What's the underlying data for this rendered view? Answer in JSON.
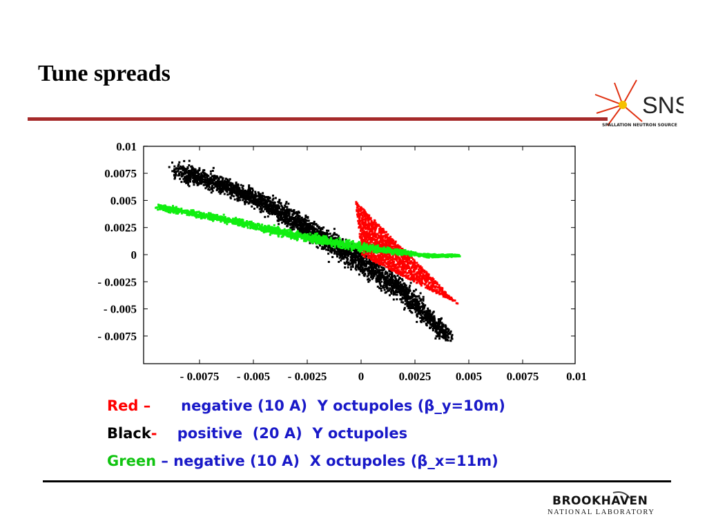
{
  "slide": {
    "title": "Tune spreads"
  },
  "logos": {
    "sns_text": "SNS",
    "sns_subtext": "SPALLATION NEUTRON SOURCE",
    "bnl_main": "BROOKHAVEN",
    "bnl_sub": "NATIONAL LABORATORY"
  },
  "legend": {
    "red": {
      "color_word": "Red",
      "sep": " –      ",
      "desc": "negative (10 A)  Y octupoles (β_y=10m)"
    },
    "black": {
      "color_word": "Black",
      "sep": "-    ",
      "desc": "positive  (20 A)  Y octupoles"
    },
    "green": {
      "color_word": "Green",
      "sep": " – ",
      "desc": "negative (10 A)  X octupoles (β_x=11m)"
    }
  },
  "colors": {
    "red": "#ff0000",
    "black": "#000000",
    "green": "#11ee11",
    "legend_text": "#1919c8",
    "title_rule": "#a52a2a"
  },
  "chart_data": {
    "type": "scatter",
    "xlim": [
      -0.01,
      0.01
    ],
    "ylim": [
      -0.01,
      0.01
    ],
    "x_ticks": [
      -0.0075,
      -0.005,
      -0.0025,
      0,
      0.0025,
      0.005,
      0.0075,
      0.01
    ],
    "x_tick_labels": [
      "- 0.0075",
      "- 0.005",
      "- 0.0025",
      "0",
      "0.0025",
      "0.005",
      "0.0075",
      "0.01"
    ],
    "y_ticks": [
      0.01,
      0.0075,
      0.005,
      0.0025,
      0,
      -0.0025,
      -0.005,
      -0.0075
    ],
    "y_tick_labels": [
      "0.01",
      "0.0075",
      "0.005",
      "0.0025",
      "0",
      "- 0.0025",
      "- 0.005",
      "- 0.0075"
    ],
    "series": [
      {
        "color": "#000000",
        "shape": "band",
        "spine": [
          [
            -0.0085,
            0.0078
          ],
          [
            -0.006,
            0.0062
          ],
          [
            -0.004,
            0.0043
          ],
          [
            -0.002,
            0.0018
          ],
          [
            0.0,
            -0.0005
          ],
          [
            0.002,
            -0.0035
          ],
          [
            0.004,
            -0.0075
          ]
        ],
        "halfwidth": [
          0.0012,
          0.001,
          0.0011,
          0.0013,
          0.0014,
          0.0012,
          0.0008
        ],
        "count": 3200
      },
      {
        "color": "#ff0000",
        "shape": "fan",
        "apex": [
          0.0,
          0.0
        ],
        "ray_a": [
          -0.0003,
          0.005
        ],
        "ray_b": [
          0.0045,
          -0.0045
        ],
        "count": 1400
      },
      {
        "color": "#11ee11",
        "shape": "band",
        "spine": [
          [
            -0.0095,
            0.0045
          ],
          [
            -0.006,
            0.0032
          ],
          [
            -0.003,
            0.0018
          ],
          [
            0.0,
            0.0008
          ],
          [
            0.003,
            0.0
          ],
          [
            0.0045,
            0.0
          ]
        ],
        "halfwidth": [
          0.0004,
          0.0004,
          0.0005,
          0.0005,
          0.0002,
          0.0001
        ],
        "count": 2400
      }
    ]
  }
}
